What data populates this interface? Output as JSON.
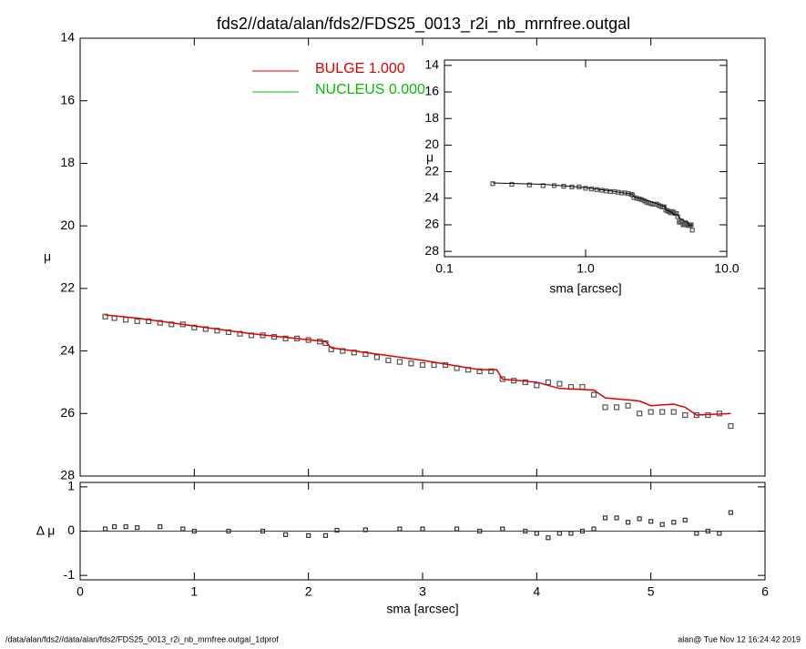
{
  "title": "fds2//data/alan/fds2/FDS25_0013_r2i_nb_mrnfree.outgal",
  "footer_left": "/data/alan/fds2//data/alan/fds2/FDS25_0013_r2i_nb_mrnfree.outgal_1dprof",
  "footer_right": "alan@  Tue Nov 12 16:24:42 2019",
  "chart_data": [
    {
      "type": "profile",
      "ylabel": "μ",
      "xlim": [
        0,
        6
      ],
      "xticks": [
        0,
        1,
        2,
        3,
        4,
        5,
        6
      ],
      "ylim": [
        14,
        28
      ],
      "yreverse": true,
      "yticks": [
        14,
        16,
        18,
        20,
        22,
        24,
        26,
        28
      ],
      "legend": [
        {
          "label": "BULGE  1.000",
          "color": "#e00000"
        },
        {
          "label": "NUCLEUS  0.000",
          "color": "#00c000"
        }
      ],
      "points": {
        "color": "#555555",
        "x": [
          0.22,
          0.3,
          0.4,
          0.5,
          0.6,
          0.7,
          0.8,
          0.9,
          1.0,
          1.1,
          1.2,
          1.3,
          1.4,
          1.5,
          1.6,
          1.7,
          1.8,
          1.9,
          2.0,
          2.1,
          2.15,
          2.2,
          2.3,
          2.4,
          2.5,
          2.6,
          2.7,
          2.8,
          2.9,
          3.0,
          3.1,
          3.2,
          3.3,
          3.4,
          3.5,
          3.6,
          3.7,
          3.8,
          3.9,
          4.0,
          4.1,
          4.2,
          4.3,
          4.4,
          4.5,
          4.6,
          4.7,
          4.8,
          4.9,
          5.0,
          5.1,
          5.2,
          5.3,
          5.4,
          5.5,
          5.6,
          5.7
        ],
        "y": [
          22.9,
          22.95,
          23.0,
          23.05,
          23.05,
          23.1,
          23.15,
          23.15,
          23.25,
          23.3,
          23.35,
          23.4,
          23.45,
          23.5,
          23.5,
          23.55,
          23.6,
          23.6,
          23.65,
          23.7,
          23.75,
          23.95,
          24.0,
          24.05,
          24.1,
          24.2,
          24.3,
          24.35,
          24.4,
          24.45,
          24.45,
          24.45,
          24.55,
          24.6,
          24.65,
          24.65,
          24.9,
          24.95,
          25.0,
          25.1,
          25.0,
          25.05,
          25.15,
          25.15,
          25.4,
          25.8,
          25.8,
          25.75,
          26.0,
          25.95,
          25.95,
          25.95,
          26.05,
          26.05,
          26.05,
          26.0,
          26.4
        ]
      },
      "model": {
        "color": "#e00000",
        "x": [
          0.22,
          0.5,
          1.0,
          1.5,
          2.15,
          2.2,
          2.5,
          3.0,
          3.5,
          3.65,
          3.7,
          4.0,
          4.2,
          4.5,
          4.6,
          4.9,
          5.0,
          5.2,
          5.3,
          5.4,
          5.7
        ],
        "y": [
          22.85,
          22.95,
          23.2,
          23.45,
          23.7,
          23.9,
          24.05,
          24.3,
          24.6,
          24.6,
          24.9,
          25.0,
          25.2,
          25.25,
          25.5,
          25.6,
          25.75,
          25.7,
          25.8,
          26.05,
          26.0
        ]
      }
    },
    {
      "type": "residual",
      "ylabel": "Δ μ",
      "xlabel": "sma [arcsec]",
      "xlim": [
        0,
        6
      ],
      "xticks": [
        0,
        1,
        2,
        3,
        4,
        5,
        6
      ],
      "ylim": [
        -1.1,
        1.1
      ],
      "yticks": [
        -1,
        0,
        1
      ],
      "points": {
        "color": "#333333",
        "x": [
          0.22,
          0.3,
          0.4,
          0.5,
          0.7,
          0.9,
          1.0,
          1.3,
          1.6,
          1.8,
          2.0,
          2.15,
          2.25,
          2.5,
          2.8,
          3.0,
          3.3,
          3.5,
          3.7,
          3.9,
          4.0,
          4.1,
          4.2,
          4.3,
          4.4,
          4.5,
          4.6,
          4.7,
          4.8,
          4.9,
          5.0,
          5.1,
          5.2,
          5.3,
          5.4,
          5.5,
          5.6,
          5.7
        ],
        "y": [
          0.05,
          0.1,
          0.1,
          0.08,
          0.1,
          0.05,
          0.0,
          0.0,
          0.0,
          -0.08,
          -0.1,
          -0.1,
          0.02,
          0.03,
          0.05,
          0.05,
          0.05,
          0.0,
          0.05,
          0.0,
          -0.05,
          -0.15,
          -0.05,
          -0.05,
          0.0,
          0.05,
          0.3,
          0.3,
          0.2,
          0.28,
          0.22,
          0.15,
          0.2,
          0.25,
          -0.05,
          0.0,
          -0.05,
          0.42
        ]
      }
    },
    {
      "type": "inset",
      "ylabel": "μ",
      "xlabel": "sma [arcsec]",
      "xlog": true,
      "xlim": [
        0.1,
        10
      ],
      "xticks": [
        0.1,
        {
          "value": 1,
          "label": "1.0"
        },
        {
          "value": 10,
          "label": "10.0"
        }
      ],
      "ylim": [
        13.6,
        28.4
      ],
      "yreverse": true,
      "yticks": [
        14,
        16,
        18,
        20,
        22,
        24,
        26,
        28
      ]
    }
  ]
}
